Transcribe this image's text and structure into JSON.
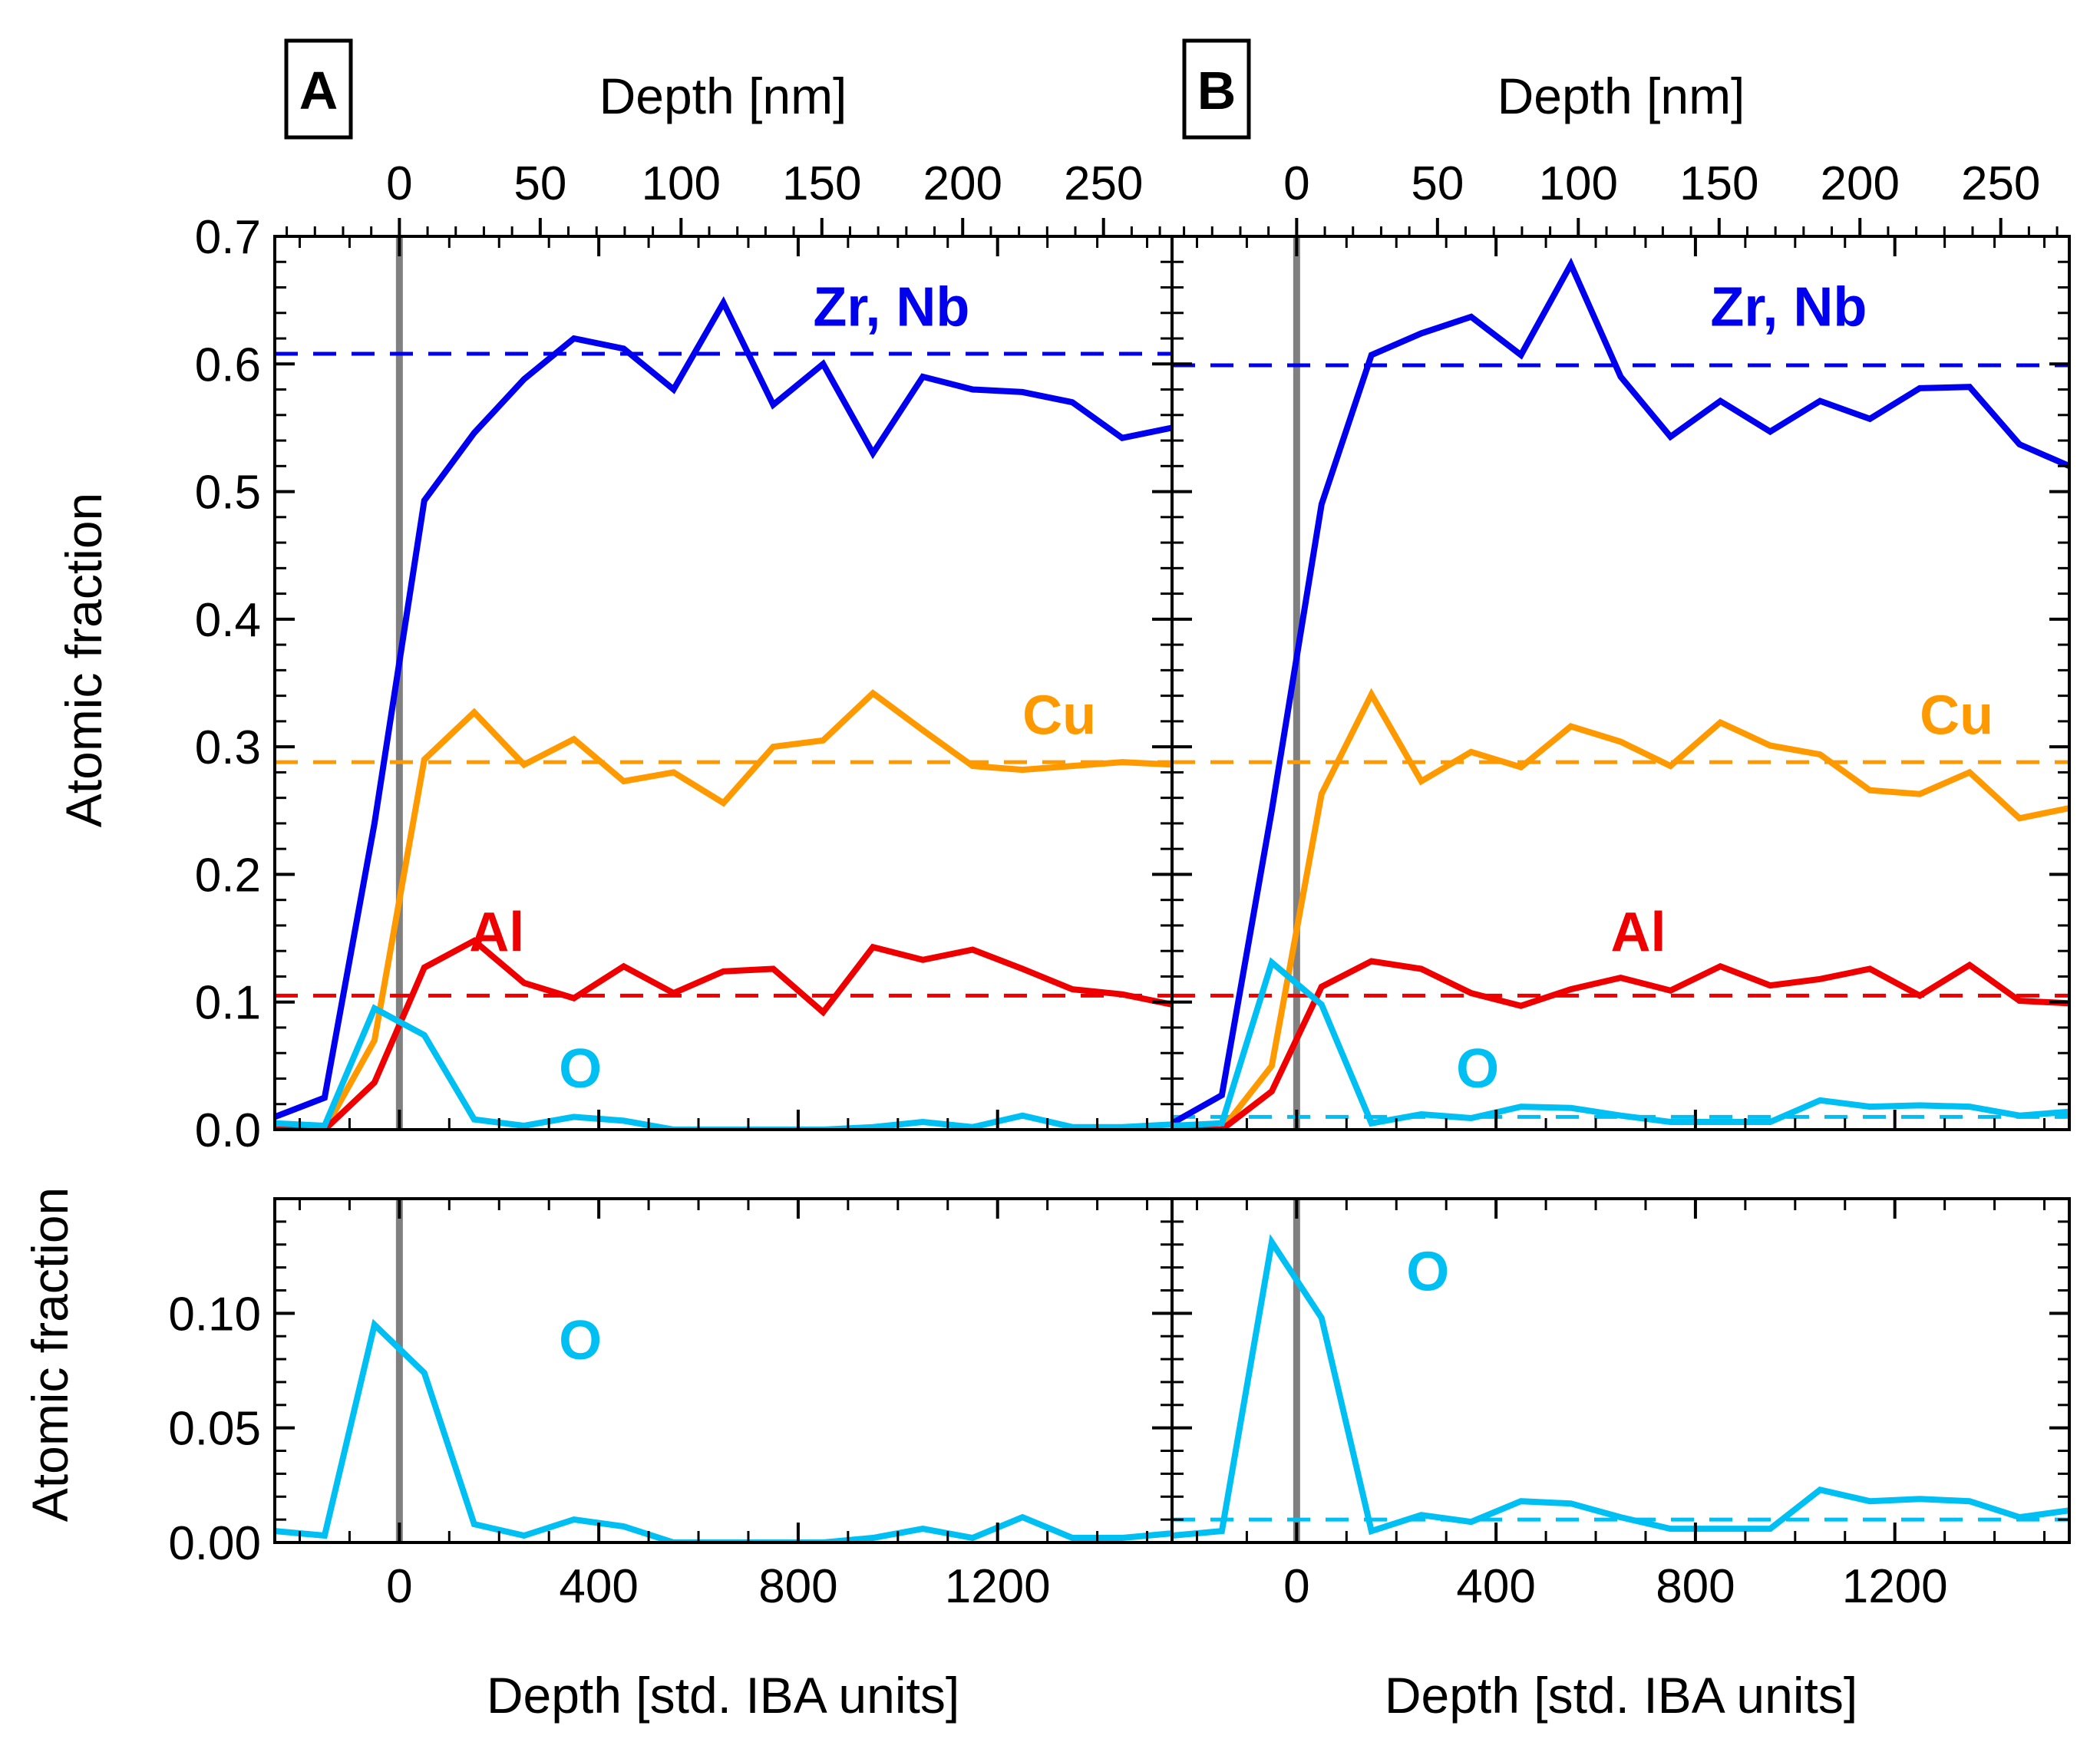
{
  "figure": {
    "top_axis_label": "Depth [nm]",
    "bottom_axis_label": "Depth [std. IBA units]",
    "y_axis_label": "Atomic fraction"
  },
  "chart_data": [
    {
      "type": "line",
      "panel": "A",
      "subplot": "top",
      "title": "A",
      "xlabel": "Depth [std. IBA units]",
      "x2label": "Depth [nm]",
      "ylabel": "Atomic fraction",
      "xlim": [
        -250,
        1550
      ],
      "ylim": [
        0,
        0.7
      ],
      "x_ticks": [
        0,
        400,
        800,
        1200
      ],
      "x_tick_labels": [
        "0",
        "400",
        "800",
        "1200"
      ],
      "x2_ticks": [
        0,
        50,
        100,
        150,
        200,
        250
      ],
      "x2_tick_labels": [
        "0",
        "50",
        "100",
        "150",
        "200",
        "250"
      ],
      "y_ticks": [
        0,
        0.1,
        0.2,
        0.3,
        0.4,
        0.5,
        0.6,
        0.7
      ],
      "y_tick_labels": [
        "0.0",
        "0.1",
        "0.2",
        "0.3",
        "0.4",
        "0.5",
        "0.6",
        "0.7"
      ],
      "x": [
        -250,
        -150,
        -50,
        50,
        150,
        250,
        350,
        450,
        550,
        650,
        750,
        850,
        950,
        1050,
        1150,
        1250,
        1350,
        1450,
        1550
      ],
      "series": [
        {
          "name": "Zr, Nb",
          "color": "#0000ee",
          "values": [
            0.01,
            0.025,
            0.24,
            0.493,
            0.546,
            0.588,
            0.62,
            0.612,
            0.58,
            0.648,
            0.568,
            0.6,
            0.53,
            0.59,
            0.58,
            0.578,
            0.57,
            0.542,
            0.55
          ],
          "reference": 0.608
        },
        {
          "name": "Cu",
          "color": "#ff9900",
          "values": [
            0.0,
            0.0,
            0.07,
            0.29,
            0.327,
            0.286,
            0.306,
            0.273,
            0.28,
            0.256,
            0.3,
            0.305,
            0.342,
            0.313,
            0.285,
            0.282,
            0.285,
            0.288,
            0.286
          ],
          "reference": 0.288
        },
        {
          "name": "Al",
          "color": "#ee0000",
          "values": [
            0.0,
            0.0,
            0.037,
            0.127,
            0.148,
            0.115,
            0.103,
            0.128,
            0.107,
            0.124,
            0.126,
            0.092,
            0.143,
            0.133,
            0.141,
            0.126,
            0.11,
            0.106,
            0.098
          ],
          "reference": 0.105
        },
        {
          "name": "O",
          "color": "#00bff3",
          "values": [
            0.005,
            0.003,
            0.095,
            0.074,
            0.008,
            0.003,
            0.01,
            0.007,
            0.0,
            0.0,
            0.0,
            0.0,
            0.002,
            0.006,
            0.002,
            0.011,
            0.002,
            0.002,
            0.004
          ],
          "reference": 0.0
        }
      ]
    },
    {
      "type": "line",
      "panel": "A",
      "subplot": "bottom",
      "xlabel": "Depth [std. IBA units]",
      "ylabel": "Atomic fraction",
      "xlim": [
        -250,
        1550
      ],
      "ylim": [
        0,
        0.15
      ],
      "x_ticks": [
        0,
        400,
        800,
        1200
      ],
      "x_tick_labels": [
        "0",
        "400",
        "800",
        "1200"
      ],
      "y_ticks": [
        0,
        0.05,
        0.1
      ],
      "y_tick_labels": [
        "0.00",
        "0.05",
        "0.10"
      ],
      "x": [
        -250,
        -150,
        -50,
        50,
        150,
        250,
        350,
        450,
        550,
        650,
        750,
        850,
        950,
        1050,
        1150,
        1250,
        1350,
        1450,
        1550
      ],
      "series": [
        {
          "name": "O",
          "color": "#00bff3",
          "values": [
            0.005,
            0.003,
            0.095,
            0.074,
            0.008,
            0.003,
            0.01,
            0.007,
            0.0,
            0.0,
            0.0,
            0.0,
            0.002,
            0.006,
            0.002,
            0.011,
            0.002,
            0.002,
            0.004
          ],
          "reference": 0.0
        }
      ]
    },
    {
      "type": "line",
      "panel": "B",
      "subplot": "top",
      "title": "B",
      "xlabel": "Depth [std. IBA units]",
      "x2label": "Depth [nm]",
      "ylabel": "Atomic fraction",
      "xlim": [
        -250,
        1550
      ],
      "ylim": [
        0,
        0.7
      ],
      "x_ticks": [
        0,
        400,
        800,
        1200
      ],
      "x_tick_labels": [
        "0",
        "400",
        "800",
        "1200"
      ],
      "x2_ticks": [
        0,
        50,
        100,
        150,
        200,
        250
      ],
      "x2_tick_labels": [
        "0",
        "50",
        "100",
        "150",
        "200",
        "250"
      ],
      "y_ticks": [
        0,
        0.1,
        0.2,
        0.3,
        0.4,
        0.5,
        0.6,
        0.7
      ],
      "y_tick_labels": [
        "0.0",
        "0.1",
        "0.2",
        "0.3",
        "0.4",
        "0.5",
        "0.6",
        "0.7"
      ],
      "x": [
        -250,
        -150,
        -50,
        50,
        150,
        250,
        350,
        450,
        550,
        650,
        750,
        850,
        950,
        1050,
        1150,
        1250,
        1350,
        1450,
        1550
      ],
      "series": [
        {
          "name": "Zr, Nb",
          "color": "#0000ee",
          "values": [
            0.005,
            0.027,
            0.25,
            0.49,
            0.607,
            0.624,
            0.637,
            0.607,
            0.678,
            0.59,
            0.543,
            0.571,
            0.547,
            0.571,
            0.557,
            0.581,
            0.582,
            0.537,
            0.52
          ],
          "reference": 0.599
        },
        {
          "name": "Cu",
          "color": "#ff9900",
          "values": [
            0.0,
            0.0,
            0.05,
            0.263,
            0.341,
            0.273,
            0.296,
            0.284,
            0.316,
            0.304,
            0.285,
            0.319,
            0.301,
            0.294,
            0.266,
            0.263,
            0.28,
            0.244,
            0.252
          ],
          "reference": 0.288
        },
        {
          "name": "Al",
          "color": "#ee0000",
          "values": [
            0.0,
            0.0,
            0.03,
            0.112,
            0.132,
            0.126,
            0.107,
            0.097,
            0.11,
            0.119,
            0.109,
            0.128,
            0.113,
            0.118,
            0.126,
            0.105,
            0.129,
            0.101,
            0.099
          ],
          "reference": 0.105
        },
        {
          "name": "O",
          "color": "#00bff3",
          "values": [
            0.003,
            0.005,
            0.131,
            0.098,
            0.005,
            0.012,
            0.009,
            0.018,
            0.017,
            0.011,
            0.006,
            0.006,
            0.006,
            0.023,
            0.018,
            0.019,
            0.018,
            0.011,
            0.014
          ],
          "reference": 0.01
        }
      ]
    },
    {
      "type": "line",
      "panel": "B",
      "subplot": "bottom",
      "xlabel": "Depth [std. IBA units]",
      "ylabel": "Atomic fraction",
      "xlim": [
        -250,
        1550
      ],
      "ylim": [
        0,
        0.15
      ],
      "x_ticks": [
        0,
        400,
        800,
        1200
      ],
      "x_tick_labels": [
        "0",
        "400",
        "800",
        "1200"
      ],
      "y_ticks": [
        0,
        0.05,
        0.1
      ],
      "y_tick_labels": [
        "0.00",
        "0.05",
        "0.10"
      ],
      "x": [
        -250,
        -150,
        -50,
        50,
        150,
        250,
        350,
        450,
        550,
        650,
        750,
        850,
        950,
        1050,
        1150,
        1250,
        1350,
        1450,
        1550
      ],
      "series": [
        {
          "name": "O",
          "color": "#00bff3",
          "values": [
            0.003,
            0.005,
            0.131,
            0.098,
            0.005,
            0.012,
            0.009,
            0.018,
            0.017,
            0.011,
            0.006,
            0.006,
            0.006,
            0.023,
            0.018,
            0.019,
            0.018,
            0.011,
            0.014
          ],
          "reference": 0.01
        }
      ]
    }
  ]
}
